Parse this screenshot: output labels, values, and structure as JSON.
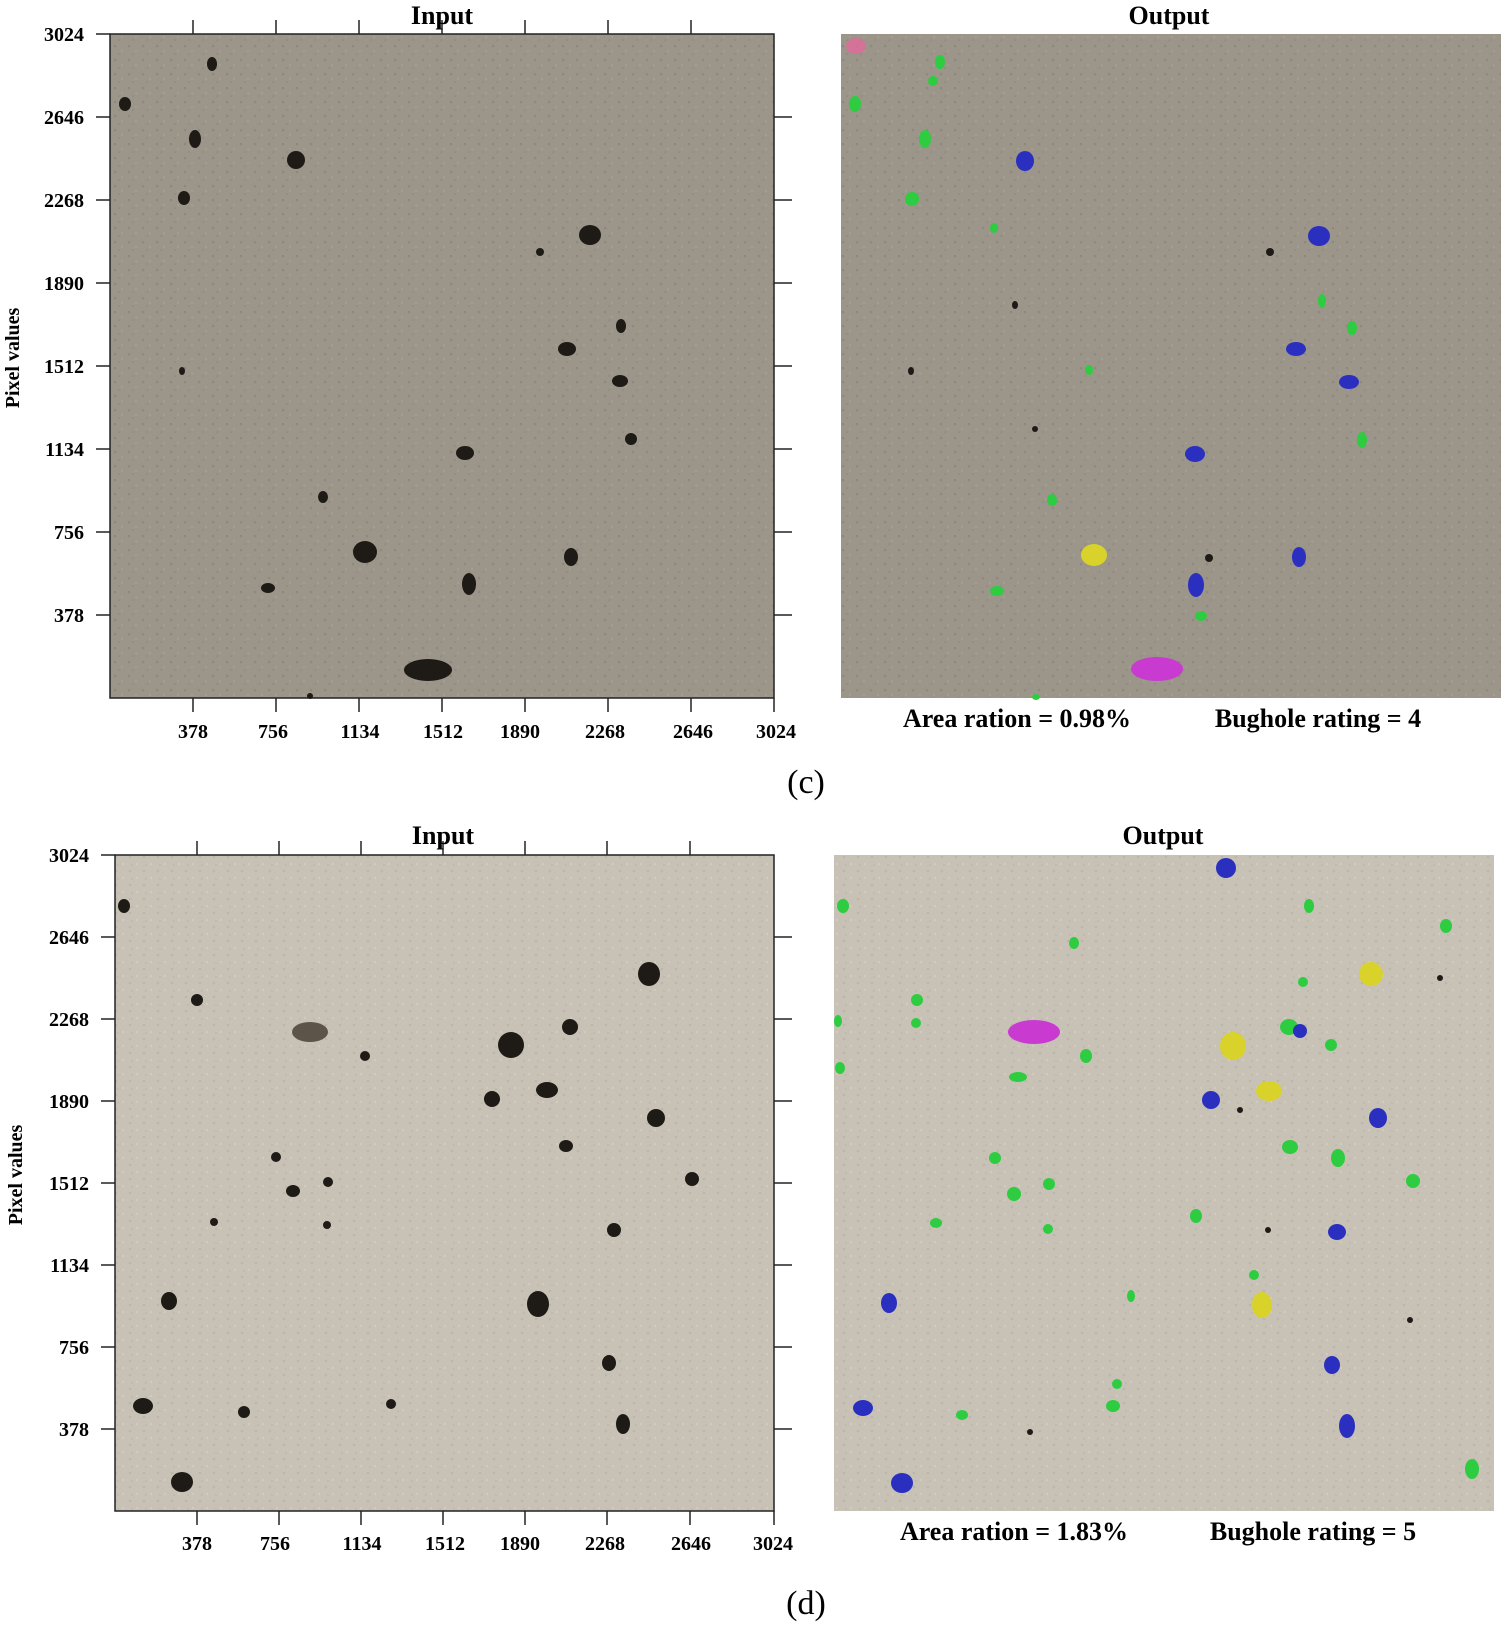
{
  "figure": {
    "panels": [
      {
        "label": "(c)",
        "input_title": "Input",
        "output_title": "Output",
        "y_axis_label": "Pixel values",
        "x_ticks": [
          "378",
          "756",
          "1134",
          "1512",
          "1890",
          "2268",
          "2646",
          "3024"
        ],
        "y_ticks": [
          "3024",
          "2646",
          "2268",
          "1890",
          "1512",
          "1134",
          "756",
          "378"
        ],
        "area_ration": "Area ration = 0.98%",
        "bughole_rating": "Bughole rating = 4"
      },
      {
        "label": "(d)",
        "input_title": "Input",
        "output_title": "Output",
        "y_axis_label": "Pixel values",
        "x_ticks": [
          "378",
          "756",
          "1134",
          "1512",
          "1890",
          "2268",
          "2646",
          "3024"
        ],
        "y_ticks": [
          "3024",
          "2646",
          "2268",
          "1890",
          "1512",
          "1134",
          "756",
          "378"
        ],
        "area_ration": "Area ration = 1.83%",
        "bughole_rating": "Bughole rating = 5"
      }
    ],
    "colors": {
      "concrete_c": "#9b958a",
      "concrete_d": "#c8c2b6",
      "hole": "#1e1a16",
      "small_bughole": "#2ecc40",
      "medium_bughole": "#2a2fc0",
      "large_bughole": "#d8d22a",
      "xlarge_bughole": "#c83ad0"
    }
  }
}
